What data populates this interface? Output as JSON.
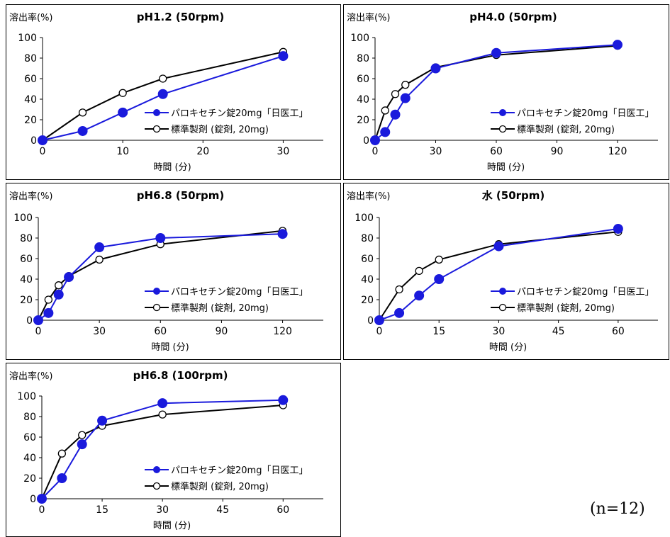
{
  "note": "(n=12)",
  "colors": {
    "test": "#1a1adc",
    "ref": "#000000"
  },
  "chart_data": [
    {
      "type": "line",
      "title": "pH1.2 (50rpm)",
      "ylabel": "溶出率(%)",
      "xlabel": "時間 (分)",
      "xlim": [
        0,
        35
      ],
      "ylim": [
        0,
        100
      ],
      "xticks": [
        0,
        10,
        20,
        30
      ],
      "yticks": [
        0,
        20,
        40,
        60,
        80,
        100
      ],
      "legend_position": "center-right",
      "series": [
        {
          "name": "パロキセチン錠20mg「日医工」",
          "x": [
            0,
            5,
            10,
            15,
            30
          ],
          "y": [
            0,
            9,
            27,
            45,
            82
          ]
        },
        {
          "name": "標準製剤 (錠剤, 20mg)",
          "x": [
            0,
            5,
            10,
            15,
            30
          ],
          "y": [
            0,
            27,
            46,
            60,
            86
          ]
        }
      ]
    },
    {
      "type": "line",
      "title": "pH4.0 (50rpm)",
      "ylabel": "溶出率(%)",
      "xlabel": "時間 (分)",
      "xlim": [
        0,
        140
      ],
      "ylim": [
        0,
        100
      ],
      "xticks": [
        0,
        30,
        60,
        90,
        120
      ],
      "yticks": [
        0,
        20,
        40,
        60,
        80,
        100
      ],
      "legend_position": "center-right",
      "series": [
        {
          "name": "パロキセチン錠20mg「日医工」",
          "x": [
            0,
            5,
            10,
            15,
            30,
            60,
            120
          ],
          "y": [
            0,
            8,
            25,
            41,
            70,
            85,
            93
          ]
        },
        {
          "name": "標準製剤 (錠剤, 20mg)",
          "x": [
            0,
            5,
            10,
            15,
            30,
            60,
            120
          ],
          "y": [
            0,
            29,
            45,
            54,
            71,
            83,
            92
          ]
        }
      ]
    },
    {
      "type": "line",
      "title": "pH6.8 (50rpm)",
      "ylabel": "溶出率(%)",
      "xlabel": "時間 (分)",
      "xlim": [
        0,
        140
      ],
      "ylim": [
        0,
        100
      ],
      "xticks": [
        0,
        30,
        60,
        90,
        120
      ],
      "yticks": [
        0,
        20,
        40,
        60,
        80,
        100
      ],
      "legend_position": "center-right",
      "series": [
        {
          "name": "パロキセチン錠20mg「日医工」",
          "x": [
            0,
            5,
            10,
            15,
            30,
            60,
            120
          ],
          "y": [
            0,
            7,
            25,
            42,
            71,
            80,
            84
          ]
        },
        {
          "name": "標準製剤 (錠剤, 20mg)",
          "x": [
            0,
            5,
            10,
            15,
            30,
            60,
            120
          ],
          "y": [
            0,
            20,
            34,
            43,
            59,
            74,
            87
          ]
        }
      ]
    },
    {
      "type": "line",
      "title": "水 (50rpm)",
      "ylabel": "溶出率(%)",
      "xlabel": "時間 (分)",
      "xlim": [
        0,
        70
      ],
      "ylim": [
        0,
        100
      ],
      "xticks": [
        0,
        15,
        30,
        45,
        60
      ],
      "yticks": [
        0,
        20,
        40,
        60,
        80,
        100
      ],
      "legend_position": "center-right",
      "series": [
        {
          "name": "パロキセチン錠20mg「日医工」",
          "x": [
            0,
            5,
            10,
            15,
            30,
            60
          ],
          "y": [
            0,
            7,
            24,
            40,
            72,
            89
          ]
        },
        {
          "name": "標準製剤 (錠剤, 20mg)",
          "x": [
            0,
            5,
            10,
            15,
            30,
            60
          ],
          "y": [
            0,
            30,
            48,
            59,
            74,
            86
          ]
        }
      ]
    },
    {
      "type": "line",
      "title": "pH6.8 (100rpm)",
      "ylabel": "溶出率(%)",
      "xlabel": "時間 (分)",
      "xlim": [
        0,
        70
      ],
      "ylim": [
        0,
        100
      ],
      "xticks": [
        0,
        15,
        30,
        45,
        60
      ],
      "yticks": [
        0,
        20,
        40,
        60,
        80,
        100
      ],
      "legend_position": "center-right",
      "series": [
        {
          "name": "パロキセチン錠20mg「日医工」",
          "x": [
            0,
            5,
            10,
            15,
            30,
            60
          ],
          "y": [
            0,
            20,
            53,
            76,
            93,
            96
          ]
        },
        {
          "name": "標準製剤 (錠剤, 20mg)",
          "x": [
            0,
            5,
            10,
            15,
            30,
            60
          ],
          "y": [
            0,
            44,
            62,
            71,
            82,
            91
          ]
        }
      ]
    }
  ]
}
